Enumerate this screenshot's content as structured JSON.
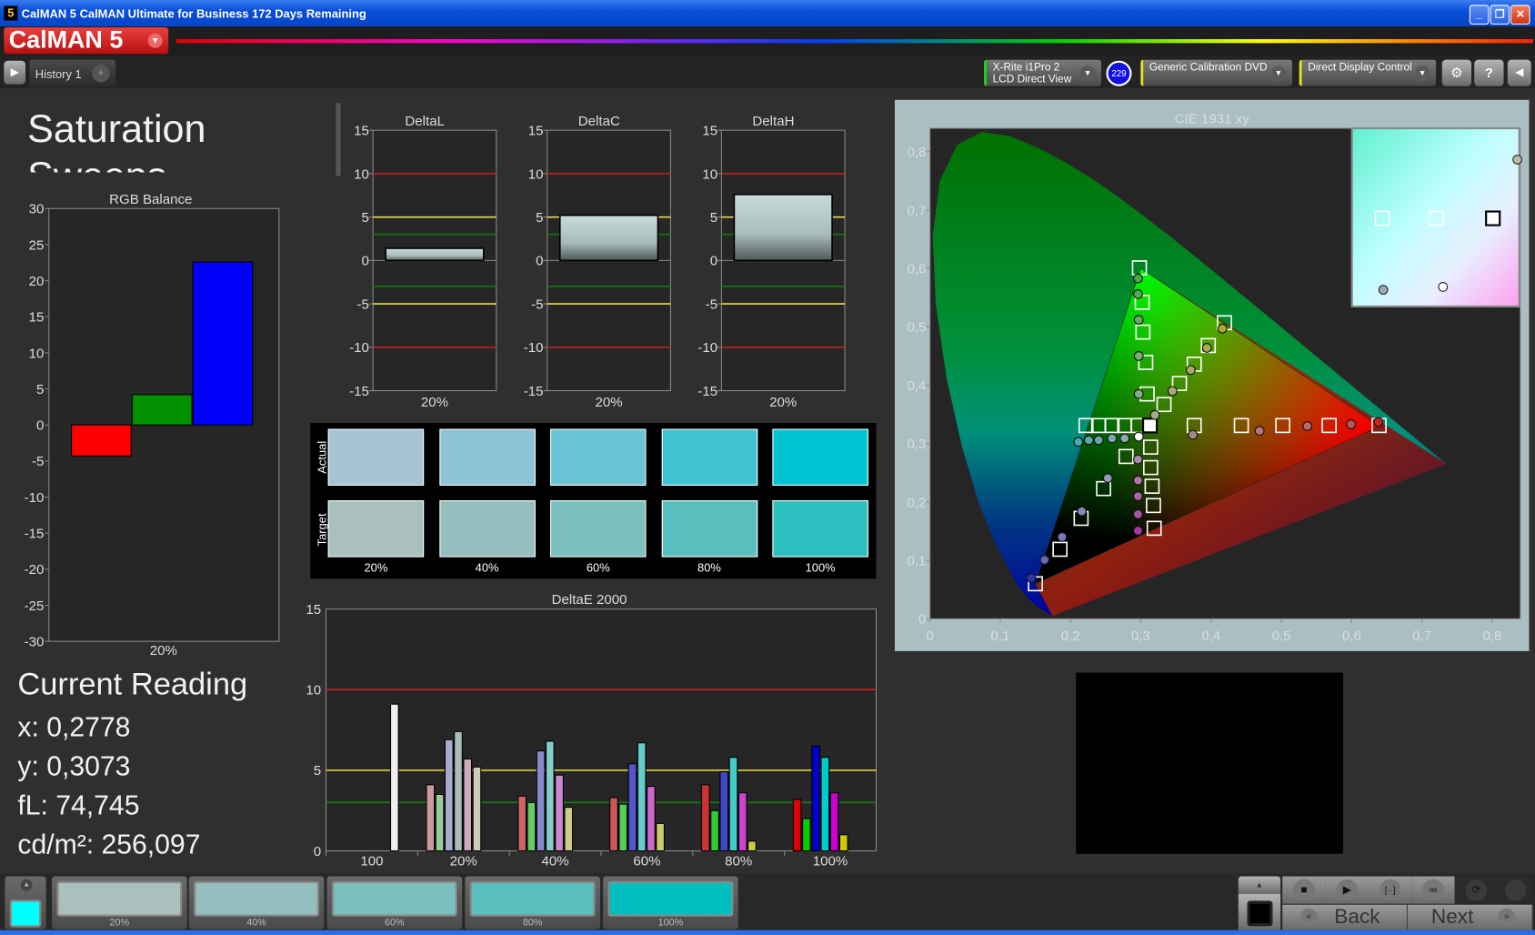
{
  "window": {
    "title": "CalMAN 5 CalMAN Ultimate for Business 172 Days Remaining",
    "app_icon": "5",
    "buttons": [
      "minimize",
      "restore",
      "close"
    ]
  },
  "logo": {
    "text": "CalMAN 5",
    "brand_color": "#d42020"
  },
  "tabs": [
    {
      "label": "History 1"
    }
  ],
  "tab_add": "+",
  "instruments": {
    "meter_line1": "X-Rite i1Pro 2",
    "meter_line2": "LCD Direct View",
    "badge": "229",
    "source": "Generic Calibration DVD",
    "display": "Direct Display Control",
    "meter_color": "#22cc22",
    "source_color": "#e8e020",
    "display_color": "#e8e020"
  },
  "page_title": "Saturation Sweeps",
  "rgb_balance": {
    "type": "bar",
    "title": "RGB Balance",
    "yticks": [
      "30",
      "25",
      "20",
      "15",
      "10",
      "5",
      "0",
      "-5",
      "-10",
      "-15",
      "-20",
      "-25",
      "-30"
    ],
    "ylim": [
      -30,
      30
    ],
    "category": "20%",
    "values": [
      {
        "name": "R",
        "value": -4.3,
        "color": "#ff0000"
      },
      {
        "name": "G",
        "value": 4.2,
        "color": "#009000"
      },
      {
        "name": "B",
        "value": 22.6,
        "color": "#0000ff"
      }
    ]
  },
  "current_reading": {
    "title": "Current Reading",
    "x": "x: 0,2778",
    "y": "y: 0,3073",
    "fl": "fL: 74,745",
    "cdm2": "cd/m²: 256,097"
  },
  "delta_charts": [
    {
      "title": "DeltaL",
      "category": "20%",
      "value": 1.4
    },
    {
      "title": "DeltaC",
      "category": "20%",
      "value": 5.2
    },
    {
      "title": "DeltaH",
      "category": "20%",
      "value": 7.6
    }
  ],
  "delta_yticks": [
    "15",
    "10",
    "5",
    "0",
    "-5",
    "-10",
    "-15"
  ],
  "thresholds": {
    "red": 10,
    "yellow": 5,
    "green": 3
  },
  "swatches": {
    "actual_label": "Actual",
    "target_label": "Target",
    "levels": [
      "20%",
      "40%",
      "60%",
      "80%",
      "100%"
    ],
    "actual": [
      "#a7c4d4",
      "#8cc4d6",
      "#6bc4d4",
      "#42c3d4",
      "#00c4d4"
    ],
    "target": [
      "#a9c0bf",
      "#93bfbf",
      "#7bbfbc",
      "#58bfbe",
      "#2bbfbf"
    ]
  },
  "chart_data": {
    "type": "bar",
    "title": "DeltaE 2000",
    "categories": [
      "100",
      "20%",
      "40%",
      "60%",
      "80%",
      "100%"
    ],
    "ylim": [
      0,
      15
    ],
    "yticks": [
      "0",
      "5",
      "10",
      "15"
    ],
    "series_colors": {
      "20%": [
        "#c99",
        "#9c9",
        "#aac",
        "#abb",
        "#cab",
        "#ccb"
      ],
      "40%": [
        "#c66",
        "#6c6",
        "#88c",
        "#8cc",
        "#c8c",
        "#cc8"
      ],
      "60%": [
        "#c55",
        "#5c5",
        "#55c",
        "#6cc",
        "#c6c",
        "#cc6"
      ],
      "80%": [
        "#c33",
        "#3c3",
        "#44c",
        "#4cc",
        "#c4c",
        "#cc4"
      ],
      "100%": [
        "#d00",
        "#0c0",
        "#00c",
        "#0cc",
        "#c0c",
        "#cc0"
      ],
      "100": [
        "#eee"
      ]
    },
    "groups": [
      {
        "category": "100",
        "values": {
          "W": 9.1
        }
      },
      {
        "category": "20%",
        "values": {
          "R": 4.1,
          "G": 3.5,
          "B": 6.9,
          "C": 7.4,
          "M": 5.7,
          "Y": 5.2
        }
      },
      {
        "category": "40%",
        "values": {
          "R": 3.4,
          "G": 3.0,
          "B": 6.2,
          "C": 6.8,
          "M": 4.7,
          "Y": 2.7
        }
      },
      {
        "category": "60%",
        "values": {
          "R": 3.3,
          "G": 2.9,
          "B": 5.4,
          "C": 6.7,
          "M": 4.0,
          "Y": 1.7
        }
      },
      {
        "category": "80%",
        "values": {
          "R": 4.1,
          "G": 2.5,
          "B": 4.9,
          "C": 5.8,
          "M": 3.6,
          "Y": 0.6
        }
      },
      {
        "category": "100%",
        "values": {
          "R": 3.2,
          "G": 2.0,
          "B": 6.5,
          "C": 5.8,
          "M": 3.6,
          "Y": 1.0
        }
      }
    ]
  },
  "cie": {
    "type": "scatter",
    "title": "CIE 1931 xy",
    "xticks": [
      "0",
      "0,1",
      "0,2",
      "0,3",
      "0,4",
      "0,5",
      "0,6",
      "0,7",
      "0,8"
    ],
    "yticks": [
      "0",
      "0,1",
      "0,2",
      "0,3",
      "0,4",
      "0,5",
      "0,6",
      "0,7",
      "0,8"
    ],
    "xlim": [
      0,
      0.84
    ],
    "ylim": [
      0,
      0.84
    ],
    "gamut": [
      [
        0.64,
        0.33
      ],
      [
        0.3,
        0.6
      ],
      [
        0.15,
        0.06
      ]
    ],
    "white_target": [
      0.313,
      0.331
    ],
    "white_actual": [
      0.297,
      0.312
    ],
    "targets": {
      "R": [
        [
          0.376,
          0.331
        ],
        [
          0.443,
          0.331
        ],
        [
          0.502,
          0.331
        ],
        [
          0.568,
          0.331
        ],
        [
          0.639,
          0.331
        ]
      ],
      "G": [
        [
          0.309,
          0.385
        ],
        [
          0.307,
          0.439
        ],
        [
          0.303,
          0.491
        ],
        [
          0.302,
          0.542
        ],
        [
          0.298,
          0.601
        ]
      ],
      "B": [
        [
          0.279,
          0.278
        ],
        [
          0.247,
          0.223
        ],
        [
          0.215,
          0.172
        ],
        [
          0.185,
          0.119
        ],
        [
          0.15,
          0.06
        ]
      ],
      "C": [
        [
          0.296,
          0.331
        ],
        [
          0.277,
          0.331
        ],
        [
          0.259,
          0.331
        ],
        [
          0.24,
          0.331
        ],
        [
          0.222,
          0.331
        ]
      ],
      "M": [
        [
          0.314,
          0.294
        ],
        [
          0.314,
          0.259
        ],
        [
          0.316,
          0.227
        ],
        [
          0.318,
          0.194
        ],
        [
          0.319,
          0.155
        ]
      ],
      "Y": [
        [
          0.333,
          0.367
        ],
        [
          0.355,
          0.403
        ],
        [
          0.376,
          0.436
        ],
        [
          0.396,
          0.468
        ],
        [
          0.419,
          0.507
        ]
      ]
    },
    "actuals": {
      "R": [
        [
          0.374,
          0.315
        ],
        [
          0.469,
          0.322
        ],
        [
          0.537,
          0.33
        ],
        [
          0.599,
          0.333
        ],
        [
          0.638,
          0.337
        ]
      ],
      "G": [
        [
          0.297,
          0.385
        ],
        [
          0.297,
          0.45
        ],
        [
          0.297,
          0.512
        ],
        [
          0.296,
          0.556
        ],
        [
          0.296,
          0.583
        ]
      ],
      "B": [
        [
          0.253,
          0.241
        ],
        [
          0.216,
          0.184
        ],
        [
          0.188,
          0.14
        ],
        [
          0.163,
          0.101
        ],
        [
          0.144,
          0.07
        ]
      ],
      "C": [
        [
          0.277,
          0.309
        ],
        [
          0.259,
          0.309
        ],
        [
          0.24,
          0.306
        ],
        [
          0.226,
          0.306
        ],
        [
          0.211,
          0.303
        ]
      ],
      "M": [
        [
          0.296,
          0.273
        ],
        [
          0.296,
          0.237
        ],
        [
          0.296,
          0.21
        ],
        [
          0.296,
          0.179
        ],
        [
          0.296,
          0.151
        ]
      ],
      "Y": [
        [
          0.32,
          0.349
        ],
        [
          0.345,
          0.39
        ],
        [
          0.371,
          0.426
        ],
        [
          0.394,
          0.464
        ],
        [
          0.416,
          0.497
        ]
      ]
    },
    "actual_colors": {
      "R": [
        "#a88",
        "#b77",
        "#b66",
        "#b55",
        "#c22"
      ],
      "G": [
        "#8a8",
        "#7a7",
        "#6a6",
        "#5a5",
        "#4a4"
      ],
      "B": [
        "#99b",
        "#88b",
        "#77b",
        "#66b",
        "#33a"
      ],
      "C": [
        "#8aa",
        "#7aa",
        "#6aa",
        "#5aa",
        "#4aa"
      ],
      "M": [
        "#a8a",
        "#a7a",
        "#a6a",
        "#a5a",
        "#a3a"
      ],
      "Y": [
        "#aa8",
        "#aa7",
        "#aa6",
        "#aa5",
        "#aa3"
      ]
    }
  },
  "bottom": {
    "current_color": "#00ffff",
    "patches": [
      {
        "label": "20%",
        "color": "#a9c0bf"
      },
      {
        "label": "40%",
        "color": "#93bfbf"
      },
      {
        "label": "60%",
        "color": "#7bbfbc"
      },
      {
        "label": "80%",
        "color": "#58bfbe"
      },
      {
        "label": "100%",
        "color": "#00bfbf"
      }
    ],
    "back": "Back",
    "next": "Next"
  }
}
